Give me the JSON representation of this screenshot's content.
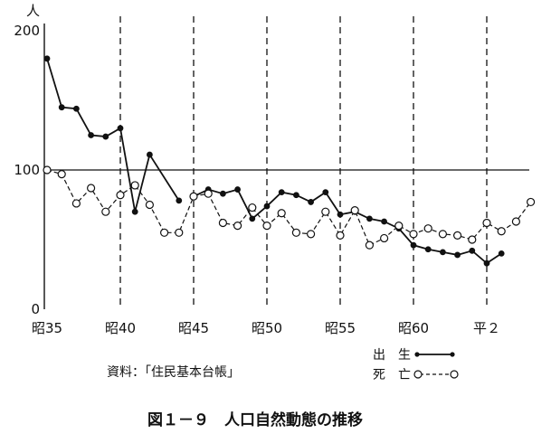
{
  "chart_data": {
    "type": "line",
    "ylabel": "人",
    "ylim": [
      0,
      200
    ],
    "yticks": [
      "0",
      "100",
      "200"
    ],
    "xlabels": [
      "昭35",
      "昭40",
      "昭45",
      "昭50",
      "昭55",
      "昭60",
      "平２"
    ],
    "reference_line": 100,
    "series": [
      {
        "name": "出　生",
        "segments": [
          [
            [
              0,
              180
            ],
            [
              1,
              145
            ],
            [
              2,
              144
            ],
            [
              3,
              125
            ],
            [
              4,
              124
            ],
            [
              5,
              130
            ],
            [
              6,
              70
            ],
            [
              7,
              111
            ],
            [
              9,
              78
            ]
          ],
          [
            [
              10,
              81
            ],
            [
              11,
              86
            ],
            [
              12,
              83
            ],
            [
              13,
              86
            ],
            [
              14,
              65
            ],
            [
              15,
              74
            ],
            [
              16,
              84
            ],
            [
              17,
              82
            ],
            [
              18,
              77
            ],
            [
              19,
              84
            ],
            [
              20,
              68
            ],
            [
              21,
              70
            ],
            [
              22,
              65
            ],
            [
              23,
              63
            ],
            [
              24,
              58
            ],
            [
              25,
              46
            ],
            [
              26,
              43
            ],
            [
              27,
              41
            ],
            [
              28,
              39
            ],
            [
              29,
              42
            ],
            [
              30,
              33
            ],
            [
              31,
              40
            ]
          ]
        ]
      },
      {
        "name": "死　亡",
        "segments": [
          [
            [
              0,
              100
            ],
            [
              1,
              97
            ],
            [
              2,
              76
            ],
            [
              3,
              87
            ],
            [
              4,
              70
            ],
            [
              5,
              82
            ],
            [
              6,
              89
            ],
            [
              7,
              75
            ],
            [
              8,
              55
            ],
            [
              9,
              55
            ],
            [
              10,
              81
            ],
            [
              11,
              83
            ],
            [
              12,
              62
            ],
            [
              13,
              60
            ],
            [
              14,
              73
            ],
            [
              15,
              60
            ],
            [
              16,
              69
            ],
            [
              17,
              55
            ],
            [
              18,
              54
            ],
            [
              19,
              70
            ],
            [
              20,
              53
            ],
            [
              21,
              71
            ],
            [
              22,
              46
            ],
            [
              23,
              51
            ],
            [
              24,
              60
            ],
            [
              25,
              54
            ],
            [
              26,
              58
            ],
            [
              27,
              54
            ],
            [
              28,
              53
            ],
            [
              29,
              50
            ],
            [
              30,
              62
            ],
            [
              31,
              56
            ],
            [
              32,
              63
            ],
            [
              33,
              77
            ]
          ]
        ]
      }
    ]
  },
  "source_text": "資料：「住民基本台帳」",
  "figure_title": "図１－９　人口自然動態の推移"
}
